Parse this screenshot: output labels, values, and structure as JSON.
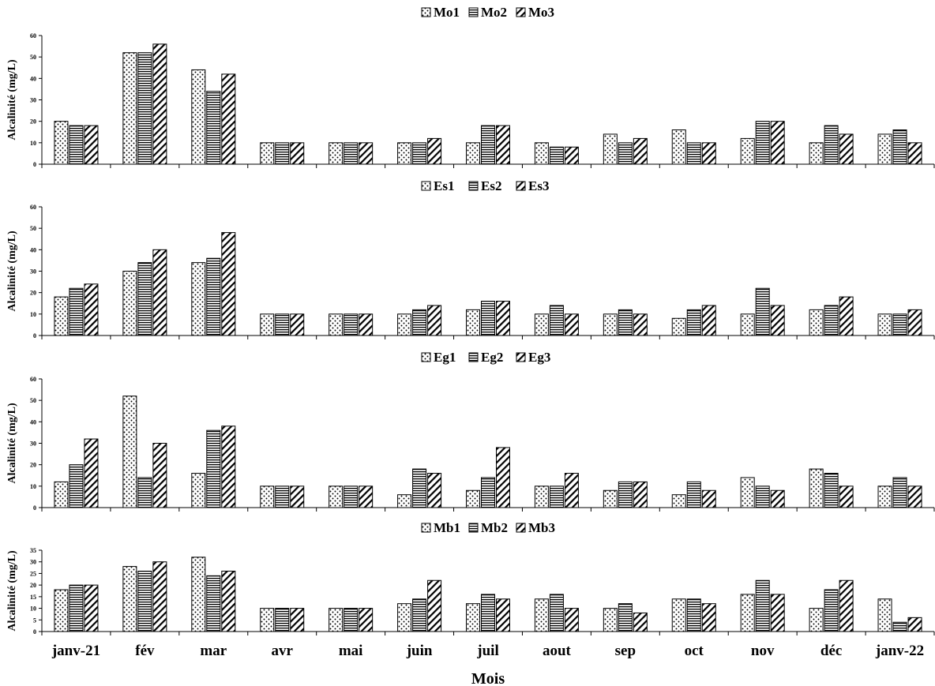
{
  "chart_data": [
    {
      "type": "bar",
      "ylabel": "Alcalinité (mg/L)",
      "ylim": [
        0,
        60
      ],
      "yticks": [
        0,
        10,
        20,
        30,
        40,
        50,
        60
      ],
      "categories": [
        "janv-21",
        "fév",
        "mar",
        "avr",
        "mai",
        "juin",
        "juil",
        "aout",
        "sep",
        "oct",
        "nov",
        "déc",
        "janv-22"
      ],
      "legend_position": "top",
      "series": [
        {
          "name": "Mo1",
          "values": [
            20,
            52,
            44,
            10,
            10,
            10,
            10,
            10,
            14,
            16,
            12,
            10,
            14
          ]
        },
        {
          "name": "Mo2",
          "values": [
            18,
            52,
            34,
            10,
            10,
            10,
            18,
            8,
            10,
            10,
            20,
            18,
            16
          ]
        },
        {
          "name": "Mo3",
          "values": [
            18,
            56,
            42,
            10,
            10,
            12,
            18,
            8,
            12,
            10,
            20,
            14,
            10
          ]
        }
      ]
    },
    {
      "type": "bar",
      "ylabel": "Alcalinité (mg/L)",
      "ylim": [
        0,
        60
      ],
      "yticks": [
        0,
        10,
        20,
        30,
        40,
        50,
        60
      ],
      "categories": [
        "janv-21",
        "fév",
        "mar",
        "avr",
        "mai",
        "juin",
        "juil",
        "aout",
        "sep",
        "oct",
        "nov",
        "déc",
        "janv-22"
      ],
      "legend_position": "top",
      "series": [
        {
          "name": "Es1",
          "values": [
            18,
            30,
            34,
            10,
            10,
            10,
            12,
            10,
            10,
            8,
            10,
            12,
            10
          ]
        },
        {
          "name": "Es2",
          "values": [
            22,
            34,
            36,
            10,
            10,
            12,
            16,
            14,
            12,
            12,
            22,
            14,
            10
          ]
        },
        {
          "name": "Es3",
          "values": [
            24,
            40,
            48,
            10,
            10,
            14,
            16,
            10,
            10,
            14,
            14,
            18,
            12
          ]
        }
      ]
    },
    {
      "type": "bar",
      "ylabel": "Alcalinité (mg/L)",
      "ylim": [
        0,
        60
      ],
      "yticks": [
        0,
        10,
        20,
        30,
        40,
        50,
        60
      ],
      "categories": [
        "janv-21",
        "fév",
        "mar",
        "avr",
        "mai",
        "juin",
        "juil",
        "aout",
        "sep",
        "oct",
        "nov",
        "déc",
        "janv-22"
      ],
      "legend_position": "top",
      "series": [
        {
          "name": "Eg1",
          "values": [
            12,
            52,
            16,
            10,
            10,
            6,
            8,
            10,
            8,
            6,
            14,
            18,
            10
          ]
        },
        {
          "name": "Eg2",
          "values": [
            20,
            14,
            36,
            10,
            10,
            18,
            14,
            10,
            12,
            12,
            10,
            16,
            14
          ]
        },
        {
          "name": "Eg3",
          "values": [
            32,
            30,
            38,
            10,
            10,
            16,
            28,
            16,
            12,
            8,
            8,
            10,
            10
          ]
        }
      ]
    },
    {
      "type": "bar",
      "ylabel": "Alcalinité (mg/L)",
      "ylim": [
        0,
        35
      ],
      "yticks": [
        0,
        5,
        10,
        15,
        20,
        25,
        30,
        35
      ],
      "categories": [
        "janv-21",
        "fév",
        "mar",
        "avr",
        "mai",
        "juin",
        "juil",
        "aout",
        "sep",
        "oct",
        "nov",
        "déc",
        "janv-22"
      ],
      "legend_position": "top",
      "xlabel": "Mois",
      "series": [
        {
          "name": "Mb1",
          "values": [
            18,
            28,
            32,
            10,
            10,
            12,
            12,
            14,
            10,
            14,
            16,
            10,
            14
          ]
        },
        {
          "name": "Mb2",
          "values": [
            20,
            26,
            24,
            10,
            10,
            14,
            16,
            16,
            12,
            14,
            22,
            18,
            4
          ]
        },
        {
          "name": "Mb3",
          "values": [
            20,
            30,
            26,
            10,
            10,
            22,
            14,
            10,
            8,
            12,
            16,
            22,
            6
          ]
        }
      ]
    }
  ]
}
